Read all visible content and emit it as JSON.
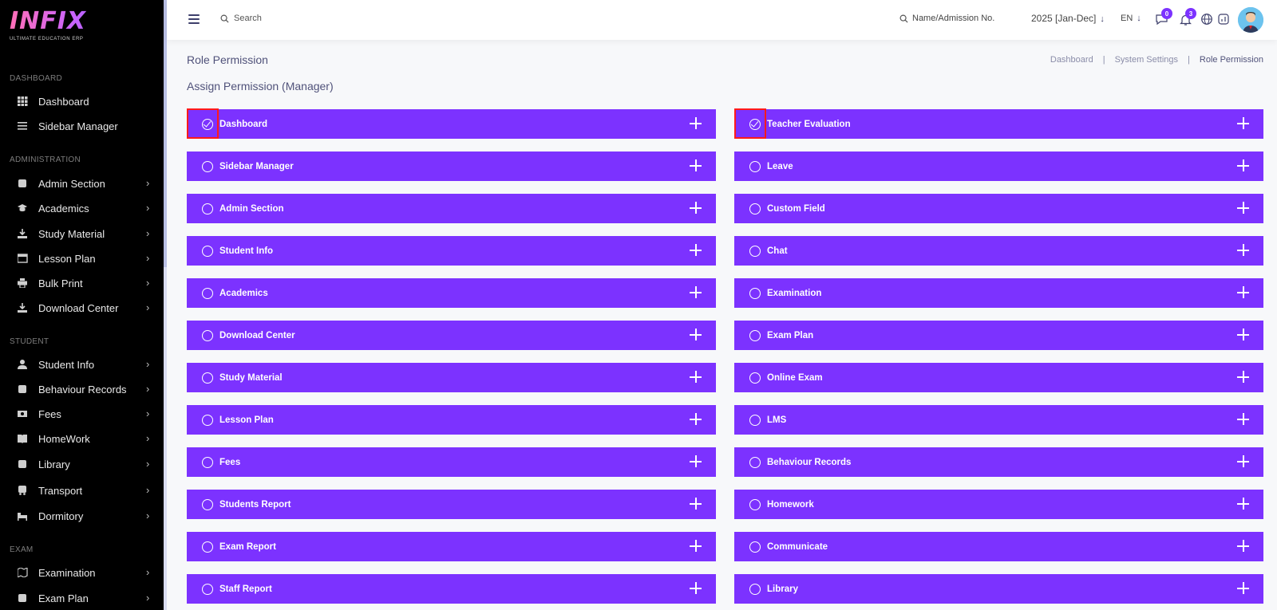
{
  "brand": {
    "logo_text": "INFIX",
    "tagline": "ULTIMATE EDUCATION ERP"
  },
  "sidebar": {
    "sections": [
      {
        "title": "DASHBOARD",
        "items": [
          {
            "label": "Dashboard",
            "icon": "grid-icon",
            "chevron": false
          },
          {
            "label": "Sidebar Manager",
            "icon": "menu-icon",
            "chevron": false
          }
        ]
      },
      {
        "title": "ADMINISTRATION",
        "items": [
          {
            "label": "Admin Section",
            "icon": "admin-icon",
            "chevron": true
          },
          {
            "label": "Academics",
            "icon": "graduation-cap-icon",
            "chevron": true
          },
          {
            "label": "Study Material",
            "icon": "download-icon",
            "chevron": true
          },
          {
            "label": "Lesson Plan",
            "icon": "calendar-icon",
            "chevron": true
          },
          {
            "label": "Bulk Print",
            "icon": "printer-icon",
            "chevron": true
          },
          {
            "label": "Download Center",
            "icon": "download-icon",
            "chevron": true
          }
        ]
      },
      {
        "title": "STUDENT",
        "items": [
          {
            "label": "Student Info",
            "icon": "user-icon",
            "chevron": true
          },
          {
            "label": "Behaviour Records",
            "icon": "records-icon",
            "chevron": true
          },
          {
            "label": "Fees",
            "icon": "money-icon",
            "chevron": true
          },
          {
            "label": "HomeWork",
            "icon": "book-icon",
            "chevron": true
          },
          {
            "label": "Library",
            "icon": "library-icon",
            "chevron": true
          },
          {
            "label": "Transport",
            "icon": "bus-icon",
            "chevron": true
          },
          {
            "label": "Dormitory",
            "icon": "bed-icon",
            "chevron": true
          }
        ]
      },
      {
        "title": "EXAM",
        "items": [
          {
            "label": "Examination",
            "icon": "map-icon",
            "chevron": true
          },
          {
            "label": "Exam Plan",
            "icon": "plan-icon",
            "chevron": true
          }
        ]
      }
    ]
  },
  "header": {
    "search_placeholder": "Search",
    "admission_placeholder": "Name/Admission No.",
    "academic_year": "2025 [Jan-Dec]",
    "language": "EN",
    "chat_count": "0",
    "notification_count": "3"
  },
  "page": {
    "title": "Role Permission",
    "subtitle": "Assign Permission (Manager)",
    "breadcrumb": [
      "Dashboard",
      "System Settings",
      "Role Permission"
    ]
  },
  "permissions": {
    "left": [
      {
        "label": "Dashboard",
        "checked": true,
        "highlighted": true
      },
      {
        "label": "Sidebar Manager",
        "checked": false
      },
      {
        "label": "Admin Section",
        "checked": false
      },
      {
        "label": "Student Info",
        "checked": false
      },
      {
        "label": "Academics",
        "checked": false
      },
      {
        "label": "Download Center",
        "checked": false
      },
      {
        "label": "Study Material",
        "checked": false
      },
      {
        "label": "Lesson Plan",
        "checked": false
      },
      {
        "label": "Fees",
        "checked": false
      },
      {
        "label": "Students Report",
        "checked": false
      },
      {
        "label": "Exam Report",
        "checked": false
      },
      {
        "label": "Staff Report",
        "checked": false
      }
    ],
    "right": [
      {
        "label": "Teacher Evaluation",
        "checked": true,
        "highlighted": true
      },
      {
        "label": "Leave",
        "checked": false
      },
      {
        "label": "Custom Field",
        "checked": false
      },
      {
        "label": "Chat",
        "checked": false
      },
      {
        "label": "Examination",
        "checked": false
      },
      {
        "label": "Exam Plan",
        "checked": false
      },
      {
        "label": "Online Exam",
        "checked": false
      },
      {
        "label": "LMS",
        "checked": false
      },
      {
        "label": "Behaviour Records",
        "checked": false
      },
      {
        "label": "Homework",
        "checked": false
      },
      {
        "label": "Communicate",
        "checked": false
      },
      {
        "label": "Library",
        "checked": false
      }
    ]
  },
  "colors": {
    "accent": "#7c32ff",
    "sidebar_bg": "#000000",
    "highlight": "#ff1a1a"
  }
}
